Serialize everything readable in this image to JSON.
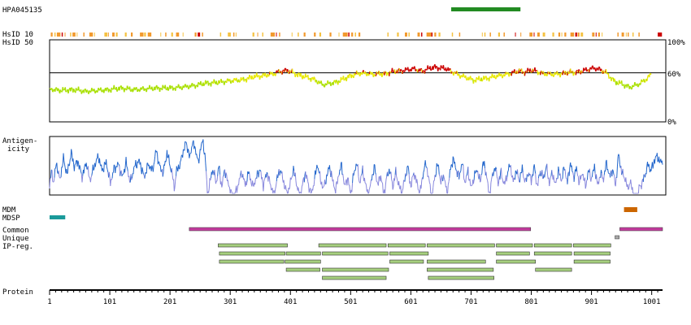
{
  "chart_data": {
    "type": "protein-feature-plot",
    "antibody_id": "HPA045135",
    "protein_length": 1019,
    "track_labels": {
      "hsid10": "HsID 10",
      "hsid50": "HsID 50",
      "antigenicity_1": "Antigen-",
      "antigenicity_2": "icity",
      "mdm": "MDM",
      "mdsp": "MDSP",
      "common": "Common",
      "unique": "Unique",
      "ipreg": "IP-reg.",
      "protein": "Protein"
    },
    "hsid50_axis": {
      "tick_labels": [
        "100%",
        "60%",
        "0%"
      ],
      "ticks": [
        100,
        60,
        0
      ],
      "threshold": 60
    },
    "x_axis": {
      "tick_labels": [
        "1",
        "101",
        "201",
        "301",
        "401",
        "501",
        "601",
        "701",
        "801",
        "901",
        "1001"
      ],
      "ticks": [
        1,
        101,
        201,
        301,
        401,
        501,
        601,
        701,
        801,
        901,
        1001
      ]
    },
    "antigen_region": {
      "start": 668,
      "end": 783,
      "color": "#228b22"
    },
    "features": {
      "mdm": [
        {
          "start": 955,
          "end": 977,
          "color": "#cc6600"
        }
      ],
      "mdsp": [
        {
          "start": 1,
          "end": 27,
          "color": "#1a9a9a"
        }
      ],
      "common": [
        {
          "start": 233,
          "end": 800
        },
        {
          "start": 948,
          "end": 1019
        }
      ],
      "unique": [
        {
          "start": 940,
          "end": 947
        }
      ]
    },
    "colors": {
      "common": "#c33c9e",
      "unique": "#a8a8a8",
      "ipreg_fill": "#a6cf7e",
      "ipreg_border": "#333333",
      "antigenicity_line": "#2266cc",
      "antigenicity_low": "#8888dd"
    },
    "ip_regions": [
      [
        [
          281,
          396
        ],
        [
          448,
          560
        ],
        [
          563,
          625
        ],
        [
          628,
          740
        ],
        [
          743,
          803
        ],
        [
          806,
          868
        ],
        [
          871,
          933
        ]
      ],
      [
        [
          283,
          392
        ],
        [
          394,
          451
        ],
        [
          454,
          563
        ],
        [
          566,
          630
        ],
        [
          743,
          798
        ],
        [
          806,
          868
        ],
        [
          872,
          932
        ]
      ],
      [
        [
          283,
          390
        ],
        [
          392,
          451
        ],
        [
          566,
          622
        ],
        [
          628,
          725
        ],
        [
          743,
          808
        ],
        [
          872,
          932
        ]
      ],
      [
        [
          394,
          450
        ],
        [
          454,
          564
        ],
        [
          628,
          738
        ],
        [
          808,
          868
        ]
      ],
      [
        [
          454,
          560
        ],
        [
          630,
          739
        ]
      ]
    ],
    "hsid50_profile": [
      [
        1,
        40
      ],
      [
        20,
        38
      ],
      [
        40,
        39
      ],
      [
        60,
        37
      ],
      [
        80,
        38
      ],
      [
        100,
        39
      ],
      [
        120,
        41
      ],
      [
        140,
        39
      ],
      [
        160,
        40
      ],
      [
        180,
        41
      ],
      [
        200,
        41
      ],
      [
        220,
        42
      ],
      [
        240,
        44
      ],
      [
        260,
        47
      ],
      [
        280,
        48
      ],
      [
        300,
        50
      ],
      [
        320,
        51
      ],
      [
        340,
        55
      ],
      [
        360,
        57
      ],
      [
        375,
        59
      ],
      [
        380,
        61
      ],
      [
        395,
        63
      ],
      [
        405,
        60
      ],
      [
        420,
        56
      ],
      [
        440,
        52
      ],
      [
        455,
        45
      ],
      [
        480,
        49
      ],
      [
        500,
        56
      ],
      [
        520,
        60
      ],
      [
        540,
        58
      ],
      [
        560,
        59
      ],
      [
        575,
        62
      ],
      [
        590,
        63
      ],
      [
        605,
        65
      ],
      [
        620,
        62
      ],
      [
        630,
        65
      ],
      [
        640,
        67
      ],
      [
        660,
        65
      ],
      [
        670,
        61
      ],
      [
        685,
        56
      ],
      [
        705,
        51
      ],
      [
        725,
        53
      ],
      [
        745,
        56
      ],
      [
        760,
        58
      ],
      [
        770,
        60
      ],
      [
        780,
        62
      ],
      [
        790,
        61
      ],
      [
        800,
        63
      ],
      [
        810,
        62
      ],
      [
        820,
        59
      ],
      [
        840,
        58
      ],
      [
        860,
        60
      ],
      [
        880,
        61
      ],
      [
        895,
        64
      ],
      [
        905,
        66
      ],
      [
        915,
        64
      ],
      [
        925,
        60
      ],
      [
        940,
        49
      ],
      [
        955,
        45
      ],
      [
        965,
        42
      ],
      [
        980,
        46
      ],
      [
        992,
        52
      ],
      [
        1000,
        58
      ]
    ],
    "hsid10_bands": [
      [
        3,
        6,
        "o"
      ],
      [
        9,
        11,
        "y"
      ],
      [
        13,
        19,
        "o"
      ],
      [
        21,
        23,
        "r"
      ],
      [
        26,
        27,
        "o"
      ],
      [
        35,
        37,
        "y"
      ],
      [
        39,
        44,
        "o"
      ],
      [
        46,
        47,
        "y"
      ],
      [
        57,
        59,
        "o"
      ],
      [
        67,
        73,
        "o"
      ],
      [
        75,
        76,
        "y"
      ],
      [
        92,
        97,
        "y"
      ],
      [
        98,
        99,
        "o"
      ],
      [
        105,
        109,
        "o"
      ],
      [
        111,
        114,
        "y"
      ],
      [
        126,
        129,
        "y"
      ],
      [
        136,
        139,
        "o"
      ],
      [
        151,
        157,
        "o"
      ],
      [
        158,
        161,
        "y"
      ],
      [
        164,
        170,
        "o"
      ],
      [
        185,
        186,
        "y"
      ],
      [
        193,
        195,
        "o"
      ],
      [
        203,
        206,
        "y"
      ],
      [
        211,
        216,
        "o"
      ],
      [
        222,
        223,
        "y"
      ],
      [
        242,
        245,
        "o"
      ],
      [
        247,
        251,
        "r"
      ],
      [
        254,
        256,
        "o"
      ],
      [
        284,
        286,
        "y"
      ],
      [
        297,
        302,
        "y"
      ],
      [
        306,
        308,
        "o"
      ],
      [
        310,
        311,
        "y"
      ],
      [
        338,
        341,
        "y"
      ],
      [
        346,
        347,
        "o"
      ],
      [
        354,
        356,
        "y"
      ],
      [
        368,
        375,
        "o"
      ],
      [
        377,
        378,
        "r"
      ],
      [
        382,
        384,
        "o"
      ],
      [
        403,
        404,
        "y"
      ],
      [
        413,
        415,
        "y"
      ],
      [
        423,
        426,
        "o"
      ],
      [
        440,
        443,
        "o"
      ],
      [
        449,
        452,
        "y"
      ],
      [
        466,
        469,
        "o"
      ],
      [
        481,
        482,
        "y"
      ],
      [
        488,
        496,
        "o"
      ],
      [
        497,
        499,
        "r"
      ],
      [
        502,
        505,
        "o"
      ],
      [
        508,
        510,
        "y"
      ],
      [
        514,
        517,
        "o"
      ],
      [
        562,
        564,
        "y"
      ],
      [
        578,
        581,
        "y"
      ],
      [
        591,
        595,
        "o"
      ],
      [
        597,
        599,
        "y"
      ],
      [
        612,
        616,
        "o"
      ],
      [
        618,
        620,
        "r"
      ],
      [
        627,
        635,
        "o"
      ],
      [
        635,
        637,
        "r"
      ],
      [
        640,
        643,
        "o"
      ],
      [
        647,
        650,
        "y"
      ],
      [
        669,
        671,
        "y"
      ],
      [
        681,
        683,
        "o"
      ],
      [
        719,
        720,
        "y"
      ],
      [
        723,
        725,
        "y"
      ],
      [
        732,
        734,
        "o"
      ],
      [
        746,
        749,
        "y"
      ],
      [
        755,
        757,
        "o"
      ],
      [
        774,
        775,
        "r"
      ],
      [
        783,
        784,
        "o"
      ],
      [
        798,
        803,
        "o"
      ],
      [
        805,
        806,
        "r"
      ],
      [
        811,
        815,
        "o"
      ],
      [
        820,
        824,
        "y"
      ],
      [
        836,
        839,
        "y"
      ],
      [
        846,
        849,
        "o"
      ],
      [
        851,
        852,
        "y"
      ],
      [
        856,
        859,
        "o"
      ],
      [
        866,
        872,
        "o"
      ],
      [
        874,
        877,
        "r"
      ],
      [
        878,
        881,
        "o"
      ],
      [
        883,
        887,
        "y"
      ],
      [
        902,
        906,
        "o"
      ],
      [
        908,
        909,
        "r"
      ],
      [
        912,
        915,
        "o"
      ],
      [
        918,
        919,
        "y"
      ],
      [
        944,
        946,
        "o"
      ],
      [
        951,
        955,
        "o"
      ],
      [
        958,
        959,
        "y"
      ],
      [
        961,
        963,
        "o"
      ],
      [
        969,
        971,
        "y"
      ],
      [
        979,
        981,
        "o"
      ],
      [
        1011,
        1018,
        "r"
      ]
    ],
    "antigenicity_anchors": [
      [
        1,
        62
      ],
      [
        4,
        40
      ],
      [
        8,
        55
      ],
      [
        12,
        30
      ],
      [
        18,
        52
      ],
      [
        24,
        25
      ],
      [
        30,
        45
      ],
      [
        37,
        18
      ],
      [
        42,
        35
      ],
      [
        48,
        28
      ],
      [
        55,
        48
      ],
      [
        62,
        30
      ],
      [
        68,
        52
      ],
      [
        75,
        35
      ],
      [
        82,
        22
      ],
      [
        88,
        40
      ],
      [
        95,
        30
      ],
      [
        102,
        55
      ],
      [
        108,
        38
      ],
      [
        115,
        32
      ],
      [
        122,
        48
      ],
      [
        128,
        30
      ],
      [
        135,
        55
      ],
      [
        142,
        35
      ],
      [
        150,
        28
      ],
      [
        158,
        48
      ],
      [
        165,
        32
      ],
      [
        172,
        40
      ],
      [
        178,
        15
      ],
      [
        185,
        38
      ],
      [
        190,
        42
      ],
      [
        196,
        18
      ],
      [
        200,
        30
      ],
      [
        205,
        45
      ],
      [
        208,
        62
      ],
      [
        212,
        40
      ],
      [
        218,
        32
      ],
      [
        222,
        18
      ],
      [
        228,
        5
      ],
      [
        234,
        25
      ],
      [
        238,
        5
      ],
      [
        244,
        15
      ],
      [
        248,
        32
      ],
      [
        252,
        10
      ],
      [
        256,
        5
      ],
      [
        260,
        28
      ],
      [
        263,
        70
      ],
      [
        268,
        52
      ],
      [
        272,
        38
      ],
      [
        278,
        55
      ],
      [
        282,
        35
      ],
      [
        287,
        60
      ],
      [
        292,
        38
      ],
      [
        297,
        55
      ],
      [
        301,
        62
      ],
      [
        304,
        75
      ],
      [
        306,
        88
      ],
      [
        309,
        70
      ],
      [
        315,
        55
      ],
      [
        320,
        42
      ],
      [
        326,
        58
      ],
      [
        332,
        42
      ],
      [
        338,
        60
      ],
      [
        344,
        50
      ],
      [
        350,
        38
      ],
      [
        356,
        58
      ],
      [
        362,
        42
      ],
      [
        368,
        58
      ],
      [
        374,
        70
      ],
      [
        378,
        52
      ],
      [
        384,
        38
      ],
      [
        390,
        55
      ],
      [
        396,
        70
      ],
      [
        401,
        55
      ],
      [
        406,
        38
      ],
      [
        411,
        55
      ],
      [
        416,
        72
      ],
      [
        421,
        58
      ],
      [
        426,
        42
      ],
      [
        431,
        58
      ],
      [
        436,
        70
      ],
      [
        441,
        50
      ],
      [
        446,
        32
      ],
      [
        451,
        52
      ],
      [
        456,
        62
      ],
      [
        461,
        48
      ],
      [
        466,
        35
      ],
      [
        471,
        52
      ],
      [
        476,
        65
      ],
      [
        481,
        45
      ],
      [
        486,
        33
      ],
      [
        491,
        60
      ],
      [
        496,
        48
      ],
      [
        501,
        70
      ],
      [
        506,
        45
      ],
      [
        511,
        30
      ],
      [
        516,
        55
      ],
      [
        521,
        40
      ],
      [
        526,
        58
      ],
      [
        531,
        72
      ],
      [
        536,
        48
      ],
      [
        541,
        36
      ],
      [
        546,
        58
      ],
      [
        551,
        45
      ],
      [
        556,
        70
      ],
      [
        561,
        48
      ],
      [
        566,
        38
      ],
      [
        571,
        60
      ],
      [
        576,
        42
      ],
      [
        581,
        58
      ],
      [
        586,
        68
      ],
      [
        591,
        50
      ],
      [
        596,
        35
      ],
      [
        601,
        60
      ],
      [
        606,
        42
      ],
      [
        611,
        55
      ],
      [
        616,
        68
      ],
      [
        621,
        45
      ],
      [
        626,
        30
      ],
      [
        631,
        52
      ],
      [
        636,
        72
      ],
      [
        641,
        46
      ],
      [
        646,
        32
      ],
      [
        651,
        55
      ],
      [
        656,
        45
      ],
      [
        661,
        70
      ],
      [
        666,
        42
      ],
      [
        671,
        25
      ],
      [
        676,
        38
      ],
      [
        681,
        48
      ],
      [
        686,
        30
      ],
      [
        691,
        55
      ],
      [
        696,
        40
      ],
      [
        701,
        62
      ],
      [
        706,
        48
      ],
      [
        711,
        38
      ],
      [
        716,
        55
      ],
      [
        721,
        30
      ],
      [
        726,
        42
      ],
      [
        731,
        70
      ],
      [
        736,
        48
      ],
      [
        741,
        35
      ],
      [
        746,
        55
      ],
      [
        751,
        42
      ],
      [
        756,
        58
      ],
      [
        761,
        45
      ],
      [
        766,
        32
      ],
      [
        771,
        55
      ],
      [
        776,
        40
      ],
      [
        781,
        52
      ],
      [
        786,
        38
      ],
      [
        791,
        55
      ],
      [
        796,
        42
      ],
      [
        801,
        52
      ],
      [
        806,
        35
      ],
      [
        811,
        60
      ],
      [
        816,
        40
      ],
      [
        821,
        50
      ],
      [
        826,
        35
      ],
      [
        831,
        55
      ],
      [
        836,
        42
      ],
      [
        841,
        58
      ],
      [
        846,
        40
      ],
      [
        851,
        52
      ],
      [
        856,
        36
      ],
      [
        861,
        55
      ],
      [
        866,
        30
      ],
      [
        871,
        48
      ],
      [
        876,
        38
      ],
      [
        881,
        55
      ],
      [
        886,
        42
      ],
      [
        891,
        60
      ],
      [
        896,
        40
      ],
      [
        901,
        50
      ],
      [
        906,
        35
      ],
      [
        911,
        58
      ],
      [
        916,
        44
      ],
      [
        921,
        50
      ],
      [
        926,
        30
      ],
      [
        931,
        48
      ],
      [
        936,
        38
      ],
      [
        941,
        58
      ],
      [
        946,
        20
      ],
      [
        951,
        42
      ],
      [
        956,
        48
      ],
      [
        961,
        62
      ],
      [
        965,
        55
      ],
      [
        968,
        60
      ],
      [
        972,
        75
      ],
      [
        976,
        88
      ],
      [
        980,
        62
      ],
      [
        985,
        55
      ],
      [
        990,
        45
      ],
      [
        995,
        32
      ],
      [
        1000,
        40
      ],
      [
        1005,
        28
      ],
      [
        1010,
        22
      ],
      [
        1015,
        30
      ],
      [
        1019,
        28
      ]
    ]
  }
}
